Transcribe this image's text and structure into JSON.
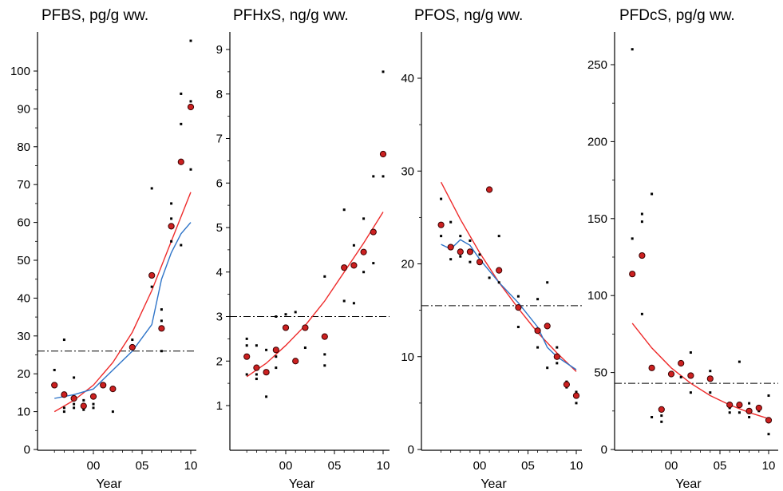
{
  "chart_data": [
    {
      "type": "scatter",
      "title": "PFBS, pg/g ww.",
      "xlabel": "Year",
      "ylim": [
        0,
        110
      ],
      "xlim": [
        1995.5,
        2010.5
      ],
      "yticks": [
        0,
        10,
        20,
        30,
        40,
        50,
        60,
        70,
        80,
        90,
        100
      ],
      "xticks": [
        {
          "v": 2000,
          "label": "00"
        },
        {
          "v": 2005,
          "label": "05"
        },
        {
          "v": 2010,
          "label": "10"
        }
      ],
      "colors": {
        "mean": "#cc2020",
        "trend": "#ee2b2b",
        "smooth": "#2e74c8",
        "ref": "#000000"
      },
      "means": [
        [
          1996,
          17
        ],
        [
          1997,
          14.5
        ],
        [
          1998,
          13.5
        ],
        [
          1999,
          11.5
        ],
        [
          2000,
          14
        ],
        [
          2001,
          17
        ],
        [
          2002,
          16
        ],
        [
          2004,
          27
        ],
        [
          2006,
          46
        ],
        [
          2007,
          32
        ],
        [
          2008,
          59
        ],
        [
          2009,
          76
        ],
        [
          2010,
          90.5
        ]
      ],
      "points": [
        [
          1996,
          21
        ],
        [
          1997,
          29
        ],
        [
          1997,
          11
        ],
        [
          1997,
          10
        ],
        [
          1998,
          19
        ],
        [
          1998,
          12
        ],
        [
          1998,
          11
        ],
        [
          1999,
          13
        ],
        [
          1999,
          10.5
        ],
        [
          2000,
          12
        ],
        [
          2000,
          11
        ],
        [
          2002,
          10
        ],
        [
          2004,
          29
        ],
        [
          2006,
          69
        ],
        [
          2006,
          43
        ],
        [
          2007,
          37
        ],
        [
          2007,
          34
        ],
        [
          2007,
          26
        ],
        [
          2008,
          65
        ],
        [
          2008,
          61
        ],
        [
          2008,
          55
        ],
        [
          2009,
          94
        ],
        [
          2009,
          86
        ],
        [
          2009,
          54
        ],
        [
          2010,
          108
        ],
        [
          2010,
          92
        ],
        [
          2010,
          74
        ]
      ],
      "trend_line": [
        [
          1996,
          10
        ],
        [
          1998,
          13
        ],
        [
          2000,
          17
        ],
        [
          2002,
          23
        ],
        [
          2004,
          31
        ],
        [
          2006,
          42
        ],
        [
          2008,
          55
        ],
        [
          2010,
          68
        ]
      ],
      "smooth_line": [
        [
          1996,
          13.5
        ],
        [
          1998,
          14.5
        ],
        [
          2000,
          16
        ],
        [
          2002,
          21
        ],
        [
          2004,
          26
        ],
        [
          2006,
          33
        ],
        [
          2007,
          45
        ],
        [
          2008,
          52
        ],
        [
          2009,
          57
        ],
        [
          2010,
          60
        ]
      ],
      "ref_line": 26
    },
    {
      "type": "scatter",
      "title": "PFHxS, ng/g ww.",
      "xlabel": "Year",
      "ylim": [
        0,
        9.4
      ],
      "xlim": [
        1995.5,
        2010.5
      ],
      "yticks": [
        1,
        2,
        3,
        4,
        5,
        6,
        7,
        8,
        9
      ],
      "xticks": [
        {
          "v": 2000,
          "label": "00"
        },
        {
          "v": 2005,
          "label": "05"
        },
        {
          "v": 2010,
          "label": "10"
        }
      ],
      "colors": {
        "mean": "#cc2020",
        "trend": "#ee2b2b",
        "smooth": "#2e74c8",
        "ref": "#000000"
      },
      "means": [
        [
          1996,
          2.1
        ],
        [
          1997,
          1.85
        ],
        [
          1998,
          1.75
        ],
        [
          1999,
          2.25
        ],
        [
          2000,
          2.75
        ],
        [
          2001,
          2.0
        ],
        [
          2002,
          2.75
        ],
        [
          2004,
          2.55
        ],
        [
          2006,
          4.1
        ],
        [
          2007,
          4.15
        ],
        [
          2008,
          4.45
        ],
        [
          2009,
          4.9
        ],
        [
          2010,
          6.65
        ]
      ],
      "points": [
        [
          1996,
          2.5
        ],
        [
          1996,
          2.35
        ],
        [
          1996,
          1.7
        ],
        [
          1997,
          2.35
        ],
        [
          1997,
          1.7
        ],
        [
          1997,
          1.6
        ],
        [
          1998,
          2.25
        ],
        [
          1998,
          1.2
        ],
        [
          1999,
          3.0
        ],
        [
          1999,
          2.1
        ],
        [
          1999,
          1.85
        ],
        [
          2000,
          3.05
        ],
        [
          2001,
          3.1
        ],
        [
          2002,
          2.3
        ],
        [
          2004,
          3.9
        ],
        [
          2004,
          2.15
        ],
        [
          2004,
          1.9
        ],
        [
          2006,
          5.4
        ],
        [
          2006,
          3.35
        ],
        [
          2007,
          4.6
        ],
        [
          2007,
          3.3
        ],
        [
          2008,
          5.2
        ],
        [
          2008,
          4.0
        ],
        [
          2009,
          6.15
        ],
        [
          2009,
          4.2
        ],
        [
          2010,
          8.5
        ],
        [
          2010,
          6.15
        ]
      ],
      "trend_line": [
        [
          1996,
          1.65
        ],
        [
          1998,
          1.95
        ],
        [
          2000,
          2.35
        ],
        [
          2002,
          2.8
        ],
        [
          2004,
          3.35
        ],
        [
          2006,
          4.0
        ],
        [
          2008,
          4.65
        ],
        [
          2010,
          5.35
        ]
      ],
      "ref_line": 3
    },
    {
      "type": "scatter",
      "title": "PFOS, ng/g ww.",
      "xlabel": "Year",
      "ylim": [
        0,
        45
      ],
      "xlim": [
        1995.5,
        2010.5
      ],
      "yticks": [
        0,
        10,
        20,
        30,
        40
      ],
      "xticks": [
        {
          "v": 2000,
          "label": "00"
        },
        {
          "v": 2005,
          "label": "05"
        },
        {
          "v": 2010,
          "label": "10"
        }
      ],
      "colors": {
        "mean": "#cc2020",
        "trend": "#ee2b2b",
        "smooth": "#2e74c8",
        "ref": "#000000"
      },
      "means": [
        [
          1996,
          24.2
        ],
        [
          1997,
          21.8
        ],
        [
          1998,
          21.3
        ],
        [
          1999,
          21.3
        ],
        [
          2000,
          20.2
        ],
        [
          2001,
          28
        ],
        [
          2002,
          19.3
        ],
        [
          2004,
          15.3
        ],
        [
          2006,
          12.8
        ],
        [
          2007,
          13.3
        ],
        [
          2008,
          10
        ],
        [
          2009,
          7
        ],
        [
          2010,
          5.8
        ]
      ],
      "points": [
        [
          1996,
          27
        ],
        [
          1996,
          23
        ],
        [
          1997,
          24.5
        ],
        [
          1997,
          20.5
        ],
        [
          1998,
          23
        ],
        [
          1998,
          20.8
        ],
        [
          1999,
          22.5
        ],
        [
          1999,
          20.2
        ],
        [
          2000,
          21
        ],
        [
          2001,
          18.5
        ],
        [
          2002,
          23
        ],
        [
          2002,
          18
        ],
        [
          2004,
          16.5
        ],
        [
          2004,
          13.2
        ],
        [
          2006,
          16.2
        ],
        [
          2006,
          11
        ],
        [
          2007,
          18
        ],
        [
          2007,
          8.8
        ],
        [
          2008,
          11
        ],
        [
          2008,
          9.3
        ],
        [
          2009,
          7.3
        ],
        [
          2009,
          6.7
        ],
        [
          2010,
          6.2
        ],
        [
          2010,
          5
        ]
      ],
      "trend_line": [
        [
          1996,
          28.8
        ],
        [
          1998,
          24.8
        ],
        [
          2000,
          21.2
        ],
        [
          2002,
          18
        ],
        [
          2004,
          15.2
        ],
        [
          2006,
          12.6
        ],
        [
          2008,
          10.4
        ],
        [
          2010,
          8.4
        ]
      ],
      "smooth_line": [
        [
          1996,
          22.1
        ],
        [
          1997,
          21.6
        ],
        [
          1998,
          22.6
        ],
        [
          1999,
          22
        ],
        [
          2000,
          20.5
        ],
        [
          2002,
          18
        ],
        [
          2004,
          15.8
        ],
        [
          2006,
          13.2
        ],
        [
          2007,
          11
        ],
        [
          2008,
          10
        ],
        [
          2010,
          8.6
        ]
      ],
      "ref_line": 15.5
    },
    {
      "type": "scatter",
      "title": "PFDcS, pg/g ww.",
      "xlabel": "Year",
      "ylim": [
        0,
        270
      ],
      "xlim": [
        1995.5,
        2010.5
      ],
      "yticks": [
        0,
        50,
        100,
        150,
        200,
        250
      ],
      "xticks": [
        {
          "v": 2000,
          "label": "00"
        },
        {
          "v": 2005,
          "label": "05"
        },
        {
          "v": 2010,
          "label": "10"
        }
      ],
      "colors": {
        "mean": "#cc2020",
        "trend": "#ee2b2b",
        "smooth": "#2e74c8",
        "ref": "#000000"
      },
      "means": [
        [
          1996,
          114
        ],
        [
          1997,
          126
        ],
        [
          1998,
          53
        ],
        [
          1999,
          26
        ],
        [
          2000,
          49
        ],
        [
          2001,
          56
        ],
        [
          2002,
          48
        ],
        [
          2004,
          46
        ],
        [
          2006,
          29
        ],
        [
          2007,
          29
        ],
        [
          2008,
          25
        ],
        [
          2009,
          27
        ],
        [
          2010,
          19
        ]
      ],
      "points": [
        [
          1996,
          260
        ],
        [
          1996,
          137
        ],
        [
          1997,
          153
        ],
        [
          1997,
          148
        ],
        [
          1997,
          88
        ],
        [
          1998,
          166
        ],
        [
          1998,
          21
        ],
        [
          1999,
          22
        ],
        [
          1999,
          18
        ],
        [
          2000,
          48
        ],
        [
          2001,
          47
        ],
        [
          2002,
          63
        ],
        [
          2002,
          37
        ],
        [
          2004,
          51
        ],
        [
          2004,
          37
        ],
        [
          2006,
          24
        ],
        [
          2006,
          27
        ],
        [
          2007,
          57
        ],
        [
          2007,
          24
        ],
        [
          2008,
          30
        ],
        [
          2008,
          21
        ],
        [
          2009,
          25
        ],
        [
          2010,
          35
        ],
        [
          2010,
          10
        ]
      ],
      "trend_line": [
        [
          1996,
          82
        ],
        [
          1998,
          66
        ],
        [
          2000,
          53
        ],
        [
          2002,
          43
        ],
        [
          2004,
          35
        ],
        [
          2006,
          29
        ],
        [
          2008,
          24
        ],
        [
          2010,
          20
        ]
      ],
      "ref_line": 43
    }
  ]
}
